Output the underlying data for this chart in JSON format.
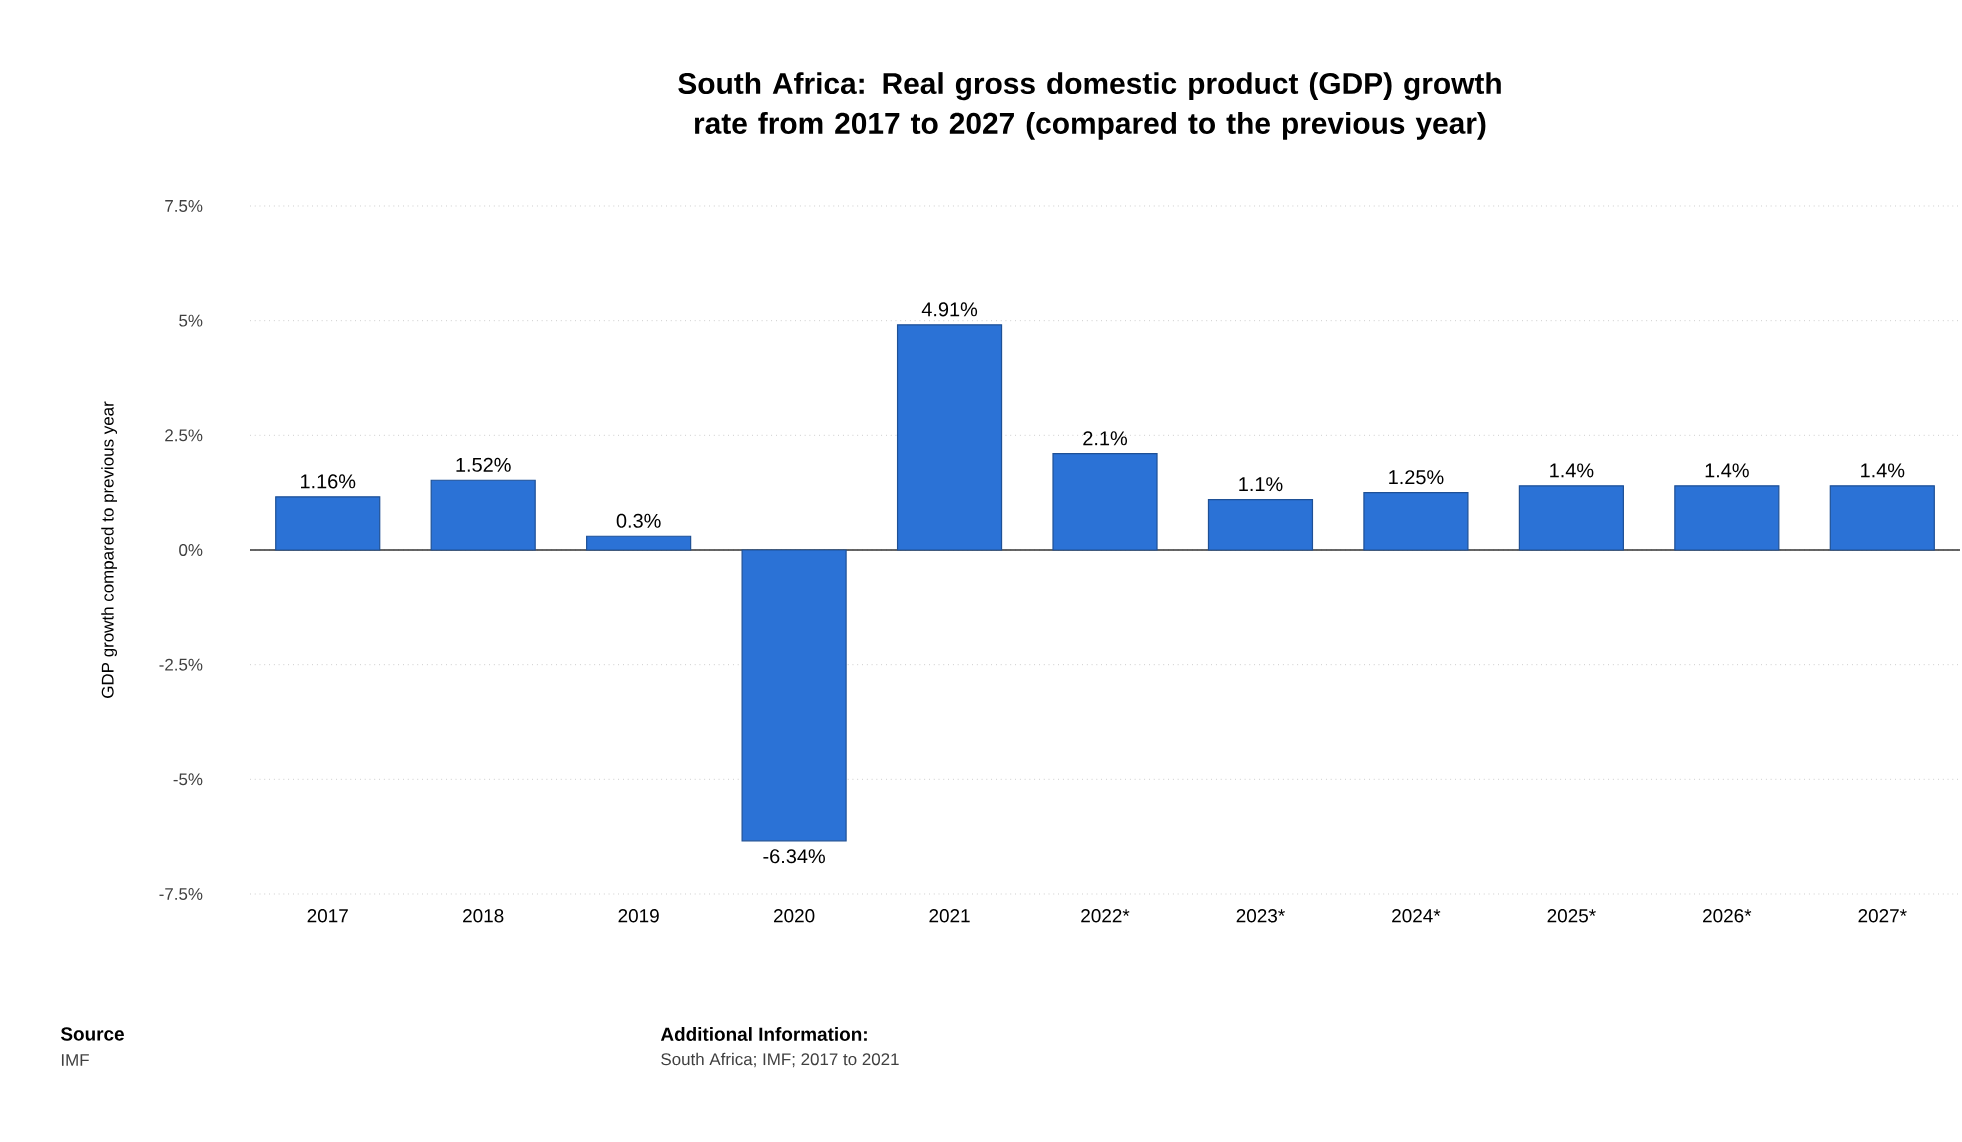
{
  "chart_data": {
    "type": "bar",
    "title": "South Africa: Real gross domestic product (GDP) growth rate from 2017 to 2027 (compared to the previous year)",
    "ylabel": "GDP growth compared to previous year",
    "categories": [
      "2017",
      "2018",
      "2019",
      "2020",
      "2021",
      "2022*",
      "2023*",
      "2024*",
      "2025*",
      "2026*",
      "2027*"
    ],
    "values": [
      1.16,
      1.52,
      0.3,
      -6.34,
      4.91,
      2.1,
      1.1,
      1.25,
      1.4,
      1.4,
      1.4
    ],
    "value_labels": [
      "1.16%",
      "1.52%",
      "0.3%",
      "-6.34%",
      "4.91%",
      "2.1%",
      "1.1%",
      "1.25%",
      "1.4%",
      "1.4%",
      "1.4%"
    ],
    "color": "#2b72d6",
    "ylim": [
      -7.5,
      7.5
    ],
    "yticks": [
      {
        "value": -7.5,
        "label": "-7.5%"
      },
      {
        "value": -5,
        "label": "-5%"
      },
      {
        "value": -2.5,
        "label": "-2.5%"
      },
      {
        "value": 0,
        "label": "0%"
      },
      {
        "value": 2.5,
        "label": "2.5%"
      },
      {
        "value": 5,
        "label": "5%"
      },
      {
        "value": 7.5,
        "label": "7.5%"
      }
    ],
    "grid": "y",
    "annotations": [
      "Source",
      "IMF",
      "Additional Information:",
      "South Africa; IMF; 2017 to 2021"
    ]
  }
}
